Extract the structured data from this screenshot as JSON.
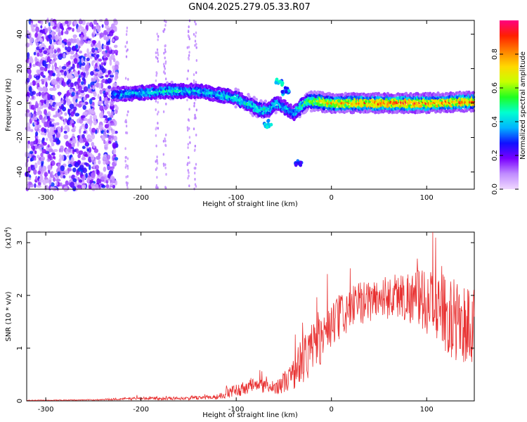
{
  "chart_data": [
    {
      "type": "heatmap",
      "title": "GN04.2025.279.05.33.R07",
      "xlabel": "Height of straight line (km)",
      "ylabel": "Frequency (Hz)",
      "xlim": [
        -320,
        150
      ],
      "ylim": [
        -50,
        48
      ],
      "xticks": [
        -300,
        -200,
        -100,
        0,
        100
      ],
      "xtick_labels": [
        "-300",
        "-200",
        "-100",
        "0",
        "100"
      ],
      "yticks": [
        -40,
        -20,
        0,
        20,
        40
      ],
      "ytick_labels": [
        "-40",
        "-20",
        "0",
        "20",
        "40"
      ],
      "colorbar": {
        "label": "Normalized spectral amplitude",
        "range": [
          0,
          1
        ],
        "ticks": [
          0.0,
          0.2,
          0.4,
          0.6,
          0.8
        ],
        "tick_labels": [
          "0.0",
          "0.2",
          "0.4",
          "0.6",
          "0.8"
        ],
        "colors": [
          "#f0d8ff",
          "#c08cff",
          "#7a00ff",
          "#1010ff",
          "#00b4ff",
          "#00ffd0",
          "#20ff20",
          "#c8ff00",
          "#ffd800",
          "#ff8000",
          "#ff2000",
          "#ff0080"
        ]
      },
      "noise_region": {
        "x_range": [
          -320,
          -225
        ],
        "amplitude": [
          0.05,
          0.3
        ]
      },
      "ridge": {
        "description": "dominant frequency track",
        "x": [
          -230,
          -200,
          -170,
          -140,
          -120,
          -100,
          -85,
          -75,
          -65,
          -58,
          -50,
          -40,
          -32,
          -25,
          -15,
          0,
          50,
          100,
          150
        ],
        "frequency": [
          5,
          6,
          7,
          7,
          5,
          3,
          -1,
          -4,
          -4,
          0,
          -2,
          -6,
          -2,
          1,
          1,
          0,
          0,
          0,
          1
        ],
        "amplitude": [
          0.35,
          0.4,
          0.45,
          0.4,
          0.4,
          0.45,
          0.45,
          0.5,
          0.4,
          0.45,
          0.4,
          0.4,
          0.5,
          0.55,
          0.65,
          0.75,
          0.85,
          0.85,
          0.8
        ]
      },
      "features": [
        {
          "x": -55,
          "frequency": 12,
          "amplitude": 0.4
        },
        {
          "x": -48,
          "frequency": 7,
          "amplitude": 0.35
        },
        {
          "x": -35,
          "frequency": -34,
          "amplitude": 0.3
        },
        {
          "x": -67,
          "frequency": -12,
          "amplitude": 0.4
        }
      ]
    },
    {
      "type": "line",
      "title": "",
      "xlabel": "Height of straight line (km)",
      "ylabel": "SNR (10 * v/v)",
      "scale_label": "(x10",
      "scale_exponent": "4",
      "xlim": [
        -320,
        150
      ],
      "ylim": [
        0,
        3.2
      ],
      "xticks": [
        -300,
        -200,
        -100,
        0,
        100
      ],
      "xtick_labels": [
        "-300",
        "-200",
        "-100",
        "0",
        "100"
      ],
      "yticks": [
        0,
        1,
        2,
        3
      ],
      "ytick_labels": [
        "0",
        "1",
        "2",
        "3"
      ],
      "color": "#e83030",
      "envelope_x": [
        -320,
        -250,
        -200,
        -150,
        -120,
        -100,
        -80,
        -60,
        -50,
        -40,
        -30,
        -20,
        -10,
        0,
        10,
        30,
        50,
        70,
        90,
        110,
        130,
        150
      ],
      "envelope_mean": [
        0.01,
        0.02,
        0.05,
        0.05,
        0.08,
        0.2,
        0.3,
        0.25,
        0.35,
        0.5,
        0.8,
        1.0,
        1.2,
        1.4,
        1.6,
        1.85,
        1.95,
        2.0,
        1.95,
        1.8,
        1.5,
        1.4
      ],
      "envelope_spread": [
        0.005,
        0.01,
        0.03,
        0.03,
        0.05,
        0.12,
        0.15,
        0.12,
        0.2,
        0.3,
        0.5,
        0.5,
        0.5,
        0.45,
        0.45,
        0.4,
        0.4,
        0.45,
        0.55,
        0.65,
        0.8,
        0.8
      ]
    }
  ]
}
